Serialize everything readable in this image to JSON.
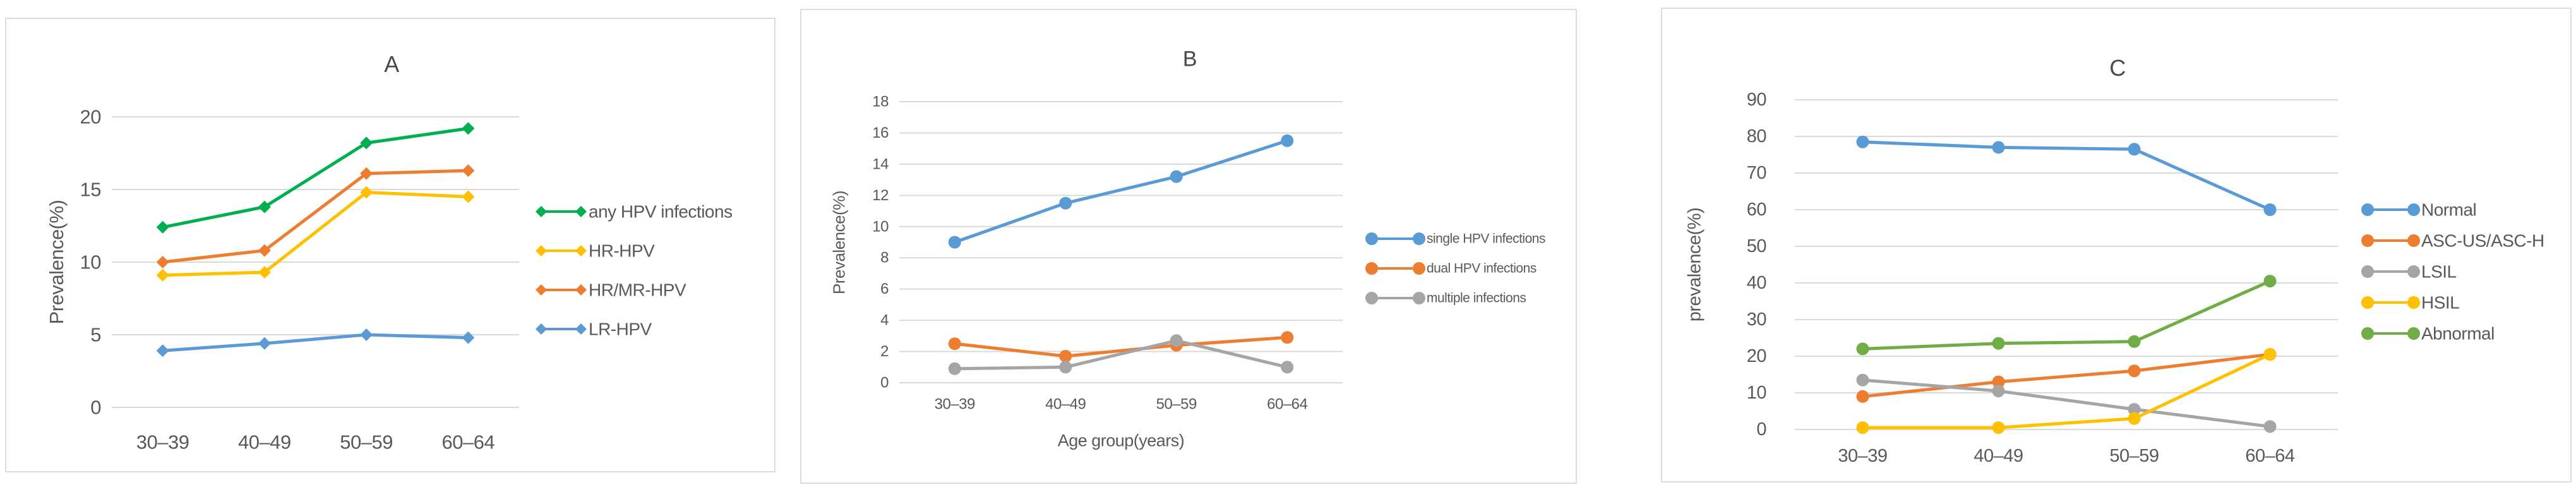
{
  "page": {
    "background": "#FFFFFF",
    "text_color": "#595959",
    "title_color": "#4A4A4A",
    "grid_color": "#D9D9D9",
    "panel_border_color": "#D7DDE6"
  },
  "chart_data": [
    {
      "id": "A",
      "type": "line",
      "title": "A",
      "ylabel": "Prevalence(%)",
      "xlabel": "",
      "categories": [
        "30–39",
        "40–49",
        "50–59",
        "60–64"
      ],
      "ylim": [
        0,
        20
      ],
      "yticks": [
        0,
        5,
        10,
        15,
        20
      ],
      "grid": true,
      "legend_position": "right",
      "marker": "diamond",
      "series": [
        {
          "name": "any HPV infections",
          "color": "#00B050",
          "values": [
            12.4,
            13.8,
            18.2,
            19.2
          ]
        },
        {
          "name": "HR-HPV",
          "color": "#FFC000",
          "values": [
            9.1,
            9.3,
            14.8,
            14.5
          ]
        },
        {
          "name": "HR/MR-HPV",
          "color": "#ED7D31",
          "values": [
            10.0,
            10.8,
            16.1,
            16.3
          ]
        },
        {
          "name": "LR-HPV",
          "color": "#5B9BD5",
          "values": [
            3.9,
            4.4,
            5.0,
            4.8
          ]
        }
      ]
    },
    {
      "id": "B",
      "type": "line",
      "title": "B",
      "ylabel": "Prevalence(%)",
      "xlabel": "Age group(years)",
      "categories": [
        "30–39",
        "40–49",
        "50–59",
        "60–64"
      ],
      "ylim": [
        0,
        18
      ],
      "yticks": [
        0,
        2,
        4,
        6,
        8,
        10,
        12,
        14,
        16,
        18
      ],
      "grid": true,
      "legend_position": "right",
      "marker": "circle",
      "series": [
        {
          "name": "single HPV infections",
          "color": "#5B9BD5",
          "values": [
            9.0,
            11.5,
            13.2,
            15.5
          ]
        },
        {
          "name": "dual HPV infections",
          "color": "#ED7D31",
          "values": [
            2.5,
            1.7,
            2.4,
            2.9
          ]
        },
        {
          "name": "multiple infections",
          "color": "#A5A5A5",
          "values": [
            0.9,
            1.0,
            2.7,
            1.0
          ]
        }
      ]
    },
    {
      "id": "C",
      "type": "line",
      "title": "C",
      "ylabel": "prevalence(%)",
      "xlabel": "",
      "categories": [
        "30–39",
        "40–49",
        "50–59",
        "60–64"
      ],
      "ylim": [
        0,
        90
      ],
      "yticks": [
        0,
        10,
        20,
        30,
        40,
        50,
        60,
        70,
        80,
        90
      ],
      "grid": true,
      "legend_position": "right",
      "marker": "circle",
      "series": [
        {
          "name": "Normal",
          "color": "#5B9BD5",
          "values": [
            78.5,
            77.0,
            76.5,
            60.0
          ]
        },
        {
          "name": "ASC-US/ASC-H",
          "color": "#ED7D31",
          "values": [
            9.0,
            13.0,
            16.0,
            20.5
          ]
        },
        {
          "name": "LSIL",
          "color": "#A5A5A5",
          "values": [
            13.5,
            10.5,
            5.5,
            0.8
          ]
        },
        {
          "name": "HSIL",
          "color": "#FFC000",
          "values": [
            0.5,
            0.5,
            3.0,
            20.5
          ]
        },
        {
          "name": "Abnormal",
          "color": "#70AD47",
          "values": [
            22.0,
            23.5,
            24.0,
            40.5
          ]
        }
      ]
    }
  ]
}
